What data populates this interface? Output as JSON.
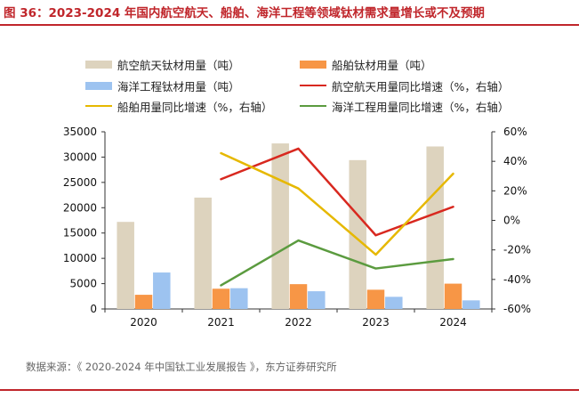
{
  "figure": {
    "title": "图 36：2023-2024 年国内航空航天、船舶、海洋工程等领域钛材需求量增长或不及预期",
    "source": "数据来源：《 2020-2024 年中国钛工业发展报告 》，东方证券研究所"
  },
  "colors": {
    "title": "#c0262b",
    "aerospace_bar": "#ddd3be",
    "ship_bar": "#f79646",
    "marine_bar": "#9dc3f0",
    "aerospace_line": "#d8281f",
    "ship_line": "#e6b800",
    "marine_line": "#5b9b3f"
  },
  "chart_data": {
    "type": "bar+line",
    "title": "2023-2024 年国内航空航天、船舶、海洋工程等领域钛材需求量增长或不及预期",
    "categories": [
      "2020",
      "2021",
      "2022",
      "2023",
      "2024"
    ],
    "left_axis": {
      "ylim": [
        0,
        35000
      ],
      "ticks": [
        "0",
        "5000",
        "10000",
        "15000",
        "20000",
        "25000",
        "30000",
        "35000"
      ],
      "tick_values": [
        0,
        5000,
        10000,
        15000,
        20000,
        25000,
        30000,
        35000
      ]
    },
    "right_axis": {
      "ylim": [
        -60,
        60
      ],
      "ticks": [
        "-60%",
        "-40%",
        "-20%",
        "0%",
        "20%",
        "40%",
        "60%"
      ],
      "tick_values": [
        -60,
        -40,
        -20,
        0,
        20,
        40,
        60
      ]
    },
    "bar_series": [
      {
        "name": "航空航天钛材用量（吨）",
        "color_key": "aerospace_bar",
        "values": [
          17200,
          22000,
          32700,
          29400,
          32100
        ]
      },
      {
        "name": "船舶钛材用量（吨）",
        "color_key": "ship_bar",
        "values": [
          2800,
          4000,
          4900,
          3800,
          5000
        ]
      },
      {
        "name": "海洋工程钛材用量（吨）",
        "color_key": "marine_bar",
        "values": [
          7200,
          4100,
          3500,
          2400,
          1700
        ]
      }
    ],
    "line_series": [
      {
        "name": "航空航天用量同比增速（%，右轴）",
        "color_key": "aerospace_line",
        "values": [
          null,
          27.9,
          48.6,
          -10.1,
          9.2
        ]
      },
      {
        "name": "船舶用量同比增速（%，右轴）",
        "color_key": "ship_line",
        "values": [
          null,
          45.5,
          21.6,
          -23.2,
          31.6
        ]
      },
      {
        "name": "海洋工程用量同比增速（%，右轴）",
        "color_key": "marine_line",
        "values": [
          null,
          -44.0,
          -13.6,
          -32.6,
          -26.2
        ]
      }
    ],
    "legend": {
      "position": "top",
      "items": [
        {
          "label": "航空航天钛材用量（吨）",
          "kind": "bar",
          "color_key": "aerospace_bar"
        },
        {
          "label": "船舶钛材用量（吨）",
          "kind": "bar",
          "color_key": "ship_bar"
        },
        {
          "label": "海洋工程钛材用量（吨）",
          "kind": "bar",
          "color_key": "marine_bar"
        },
        {
          "label": "航空航天用量同比增速（%，右轴）",
          "kind": "line",
          "color_key": "aerospace_line"
        },
        {
          "label": "船舶用量同比增速（%，右轴）",
          "kind": "line",
          "color_key": "ship_line"
        },
        {
          "label": "海洋工程用量同比增速（%，右轴）",
          "kind": "line",
          "color_key": "marine_line"
        }
      ]
    },
    "grid": false
  }
}
